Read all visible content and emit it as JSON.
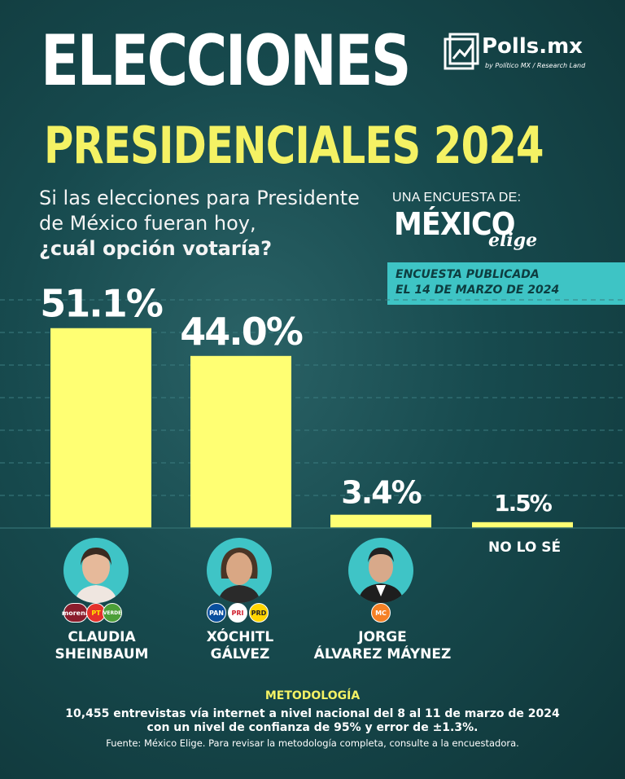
{
  "header": {
    "title_line1": "ELECCIONES",
    "title_line2": "PRESIDENCIALES 2024",
    "brand": "Polls.mx",
    "brand_sub": "by Político MX / Research Land"
  },
  "question": {
    "line1": "Si las elecciones para Presidente",
    "line2": "de México fueran hoy,",
    "line3": "¿cuál opción votaría?"
  },
  "pollster": {
    "label": "UNA ENCUESTA DE:",
    "name": "MÉXICO",
    "name_script": "elige",
    "published_line1": "ENCUESTA PUBLICADA",
    "published_line2": "EL 14 DE MARZO DE 2024"
  },
  "colors": {
    "bar": "#ffff73",
    "title_yellow": "#f4f264",
    "accent_teal": "#3ec4c5",
    "methodology_title": "#f4f264"
  },
  "chart_data": {
    "type": "bar",
    "categories": [
      "CLAUDIA SHEINBAUM",
      "XÓCHITL GÁLVEZ",
      "JORGE ÁLVAREZ MÁYNEZ",
      "NO LO SÉ"
    ],
    "values": [
      51.1,
      44.0,
      3.4,
      1.5
    ],
    "value_labels": [
      "51.1%",
      "44.0%",
      "3.4%",
      "1.5%"
    ],
    "ylim": [
      0,
      60
    ],
    "grid": true
  },
  "candidates": [
    {
      "name_line1": "CLAUDIA",
      "name_line2": "SHEINBAUM",
      "parties": [
        "morena",
        "PT",
        "VERDE"
      ]
    },
    {
      "name_line1": "XÓCHITL",
      "name_line2": "GÁLVEZ",
      "parties": [
        "PAN",
        "PRI",
        "PRD"
      ]
    },
    {
      "name_line1": "JORGE",
      "name_line2": "ÁLVAREZ MÁYNEZ",
      "parties": [
        "MC"
      ]
    }
  ],
  "no_answer_label": "NO LO SÉ",
  "methodology": {
    "title": "METODOLOGÍA",
    "line1": "10,455 entrevistas vía internet a nivel nacional del 8 al 11 de marzo de 2024",
    "line2": "con un nivel de confianza de 95% y error de ±1.3%.",
    "source": "Fuente: México Elige. Para revisar la metodología completa, consulte a la encuestadora."
  }
}
